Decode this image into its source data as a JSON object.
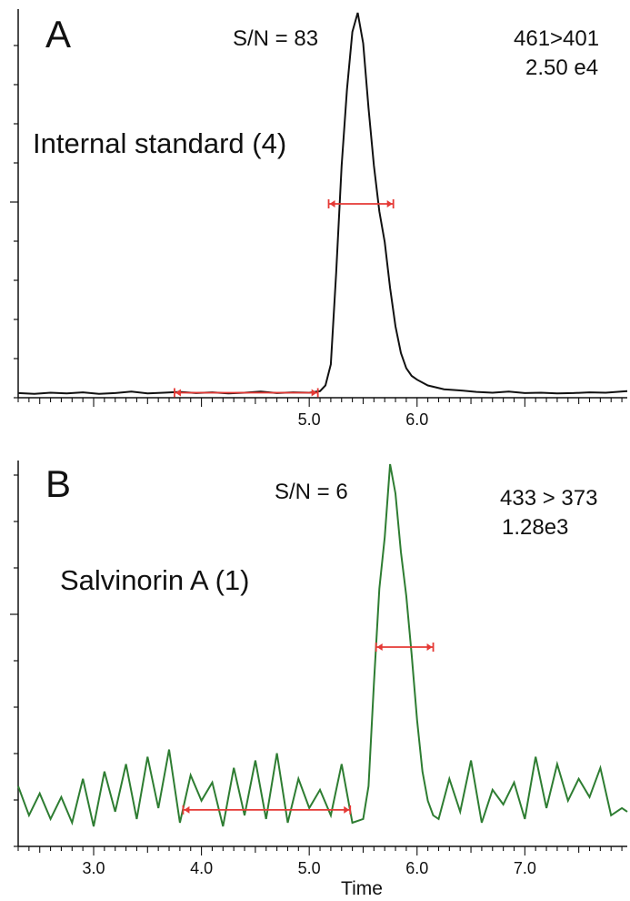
{
  "colors": {
    "trace_a": "#111111",
    "trace_b": "#2e7d32",
    "marker": "#e53935",
    "axis": "#111111"
  },
  "chart_data": [
    {
      "type": "line",
      "panel_label": "A",
      "compound_label": "Internal standard (4)",
      "sn_label": "S/N = 83",
      "transition": "461>401",
      "intensity": "2.50 e4",
      "xlabel": "",
      "ylabel": "",
      "xlim": [
        2.3,
        7.95
      ],
      "ylim": [
        0,
        100
      ],
      "x_ticks": [
        5.0,
        6.0
      ],
      "x_tick_labels": [
        "5.0",
        "6.0"
      ],
      "grid": false,
      "series": [
        {
          "x": [
            2.3,
            2.45,
            2.6,
            2.75,
            2.9,
            3.05,
            3.2,
            3.35,
            3.5,
            3.65,
            3.8,
            3.95,
            4.1,
            4.25,
            4.4,
            4.55,
            4.7,
            4.85,
            5.0,
            5.1,
            5.15,
            5.2,
            5.25,
            5.3,
            5.35,
            5.4,
            5.45,
            5.5,
            5.55,
            5.6,
            5.65,
            5.7,
            5.75,
            5.8,
            5.85,
            5.9,
            5.95,
            6.0,
            6.1,
            6.25,
            6.4,
            6.55,
            6.7,
            6.85,
            7.0,
            7.15,
            7.3,
            7.45,
            7.6,
            7.75,
            7.95
          ],
          "y": [
            0.5,
            0.3,
            0.6,
            0.4,
            0.7,
            0.3,
            0.5,
            0.9,
            0.4,
            0.6,
            0.8,
            0.5,
            0.7,
            0.4,
            0.6,
            0.9,
            0.5,
            0.7,
            0.6,
            1.0,
            2.5,
            8,
            32,
            60,
            80,
            95,
            100,
            92,
            75,
            60,
            48,
            40,
            28,
            18,
            11,
            7,
            5,
            4,
            2.5,
            1.5,
            1.2,
            0.8,
            0.6,
            0.9,
            0.5,
            0.6,
            0.4,
            0.5,
            0.7,
            0.6,
            1.0
          ]
        }
      ],
      "fwhm_marker": [
        5.18,
        5.78
      ],
      "noise_marker": [
        3.75,
        5.08
      ]
    },
    {
      "type": "line",
      "panel_label": "B",
      "compound_label": "Salvinorin A (1)",
      "sn_label": "S/N = 6",
      "transition": "433 > 373",
      "intensity": "1.28e3",
      "xlabel": "Time",
      "ylabel": "",
      "xlim": [
        2.3,
        7.95
      ],
      "ylim": [
        0,
        100
      ],
      "x_ticks": [
        3.0,
        4.0,
        5.0,
        6.0,
        7.0
      ],
      "x_tick_labels": [
        "3.0",
        "4.0",
        "5.0",
        "6.0",
        "7.0"
      ],
      "grid": false,
      "series": [
        {
          "x": [
            2.3,
            2.4,
            2.5,
            2.6,
            2.7,
            2.8,
            2.9,
            3.0,
            3.1,
            3.2,
            3.3,
            3.4,
            3.5,
            3.6,
            3.7,
            3.8,
            3.9,
            4.0,
            4.1,
            4.2,
            4.3,
            4.4,
            4.5,
            4.6,
            4.7,
            4.8,
            4.9,
            5.0,
            5.1,
            5.2,
            5.3,
            5.4,
            5.5,
            5.55,
            5.6,
            5.65,
            5.7,
            5.75,
            5.8,
            5.85,
            5.9,
            5.95,
            6.0,
            6.05,
            6.1,
            6.15,
            6.2,
            6.3,
            6.4,
            6.5,
            6.6,
            6.7,
            6.8,
            6.9,
            7.0,
            7.1,
            7.2,
            7.3,
            7.4,
            7.5,
            7.6,
            7.7,
            7.8,
            7.9,
            7.95
          ],
          "y": [
            12,
            4,
            10,
            3,
            9,
            2,
            14,
            1,
            16,
            5,
            18,
            3,
            20,
            6,
            22,
            2,
            15,
            8,
            13,
            1,
            17,
            4,
            19,
            3,
            21,
            2,
            14,
            6,
            11,
            4,
            18,
            2,
            3,
            12,
            40,
            66,
            80,
            100,
            92,
            76,
            64,
            48,
            30,
            16,
            8,
            4,
            3,
            14,
            5,
            19,
            2,
            11,
            7,
            13,
            3,
            20,
            6,
            18,
            8,
            14,
            9,
            17,
            4,
            6,
            5
          ]
        }
      ],
      "fwhm_marker": [
        5.62,
        6.15
      ],
      "noise_marker": [
        3.83,
        5.38
      ]
    }
  ]
}
